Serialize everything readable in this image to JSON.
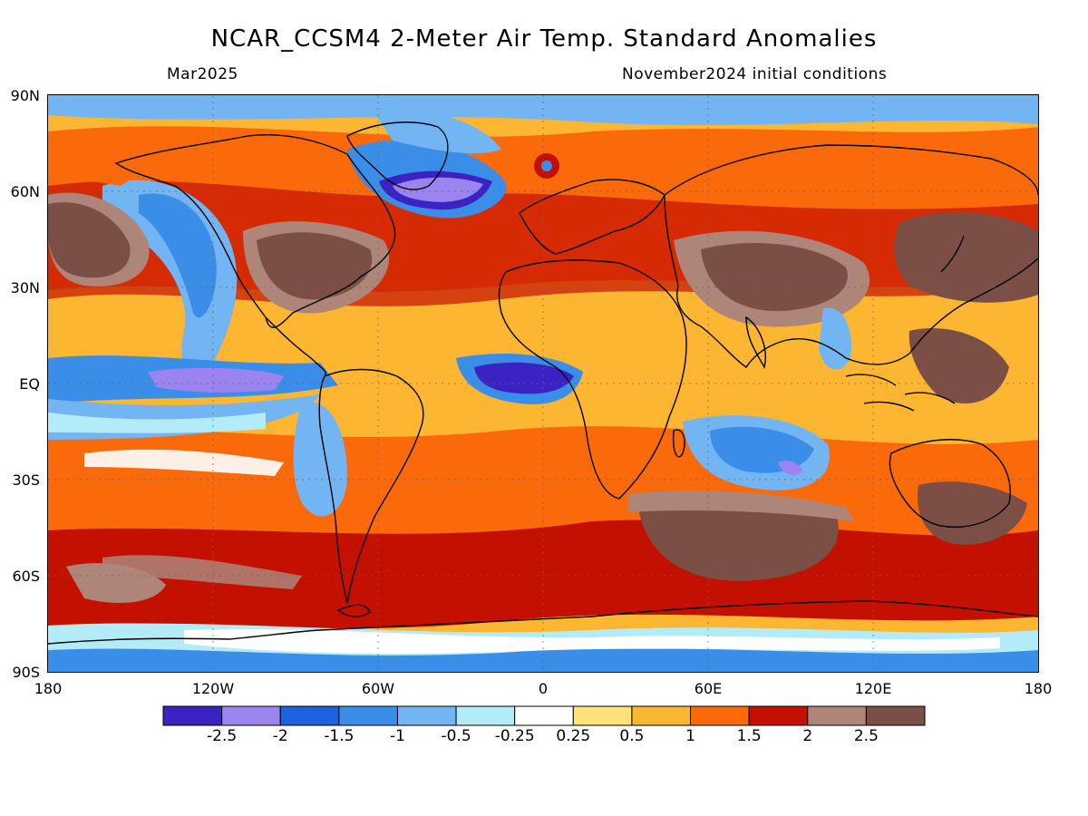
{
  "title": "NCAR_CCSM4 2-Meter Air Temp. Standard Anomalies",
  "valid_month": "Mar2025",
  "init_label": "November2024 initial conditions",
  "lat_labels": [
    "90N",
    "60N",
    "30N",
    "EQ",
    "30S",
    "60S",
    "90S"
  ],
  "lon_labels": [
    "180",
    "120W",
    "60W",
    "0",
    "60E",
    "120E",
    "180"
  ],
  "colorbar": {
    "colors": [
      "#3a23c2",
      "#9b84f0",
      "#1c61e0",
      "#3b8ee8",
      "#73b4f2",
      "#b3ecf8",
      "#ffffff",
      "#ffe27a",
      "#fcb632",
      "#fb6a0a",
      "#c41000",
      "#ad8579",
      "#7b4f45"
    ],
    "labels": [
      "-2.5",
      "-2",
      "-1.5",
      "-1",
      "-0.5",
      "-0.25",
      "0.25",
      "0.5",
      "1",
      "1.5",
      "2",
      "2.5"
    ]
  },
  "map": {
    "ocean_base": "#fcb632",
    "polar_color": "#3b8ee8"
  }
}
